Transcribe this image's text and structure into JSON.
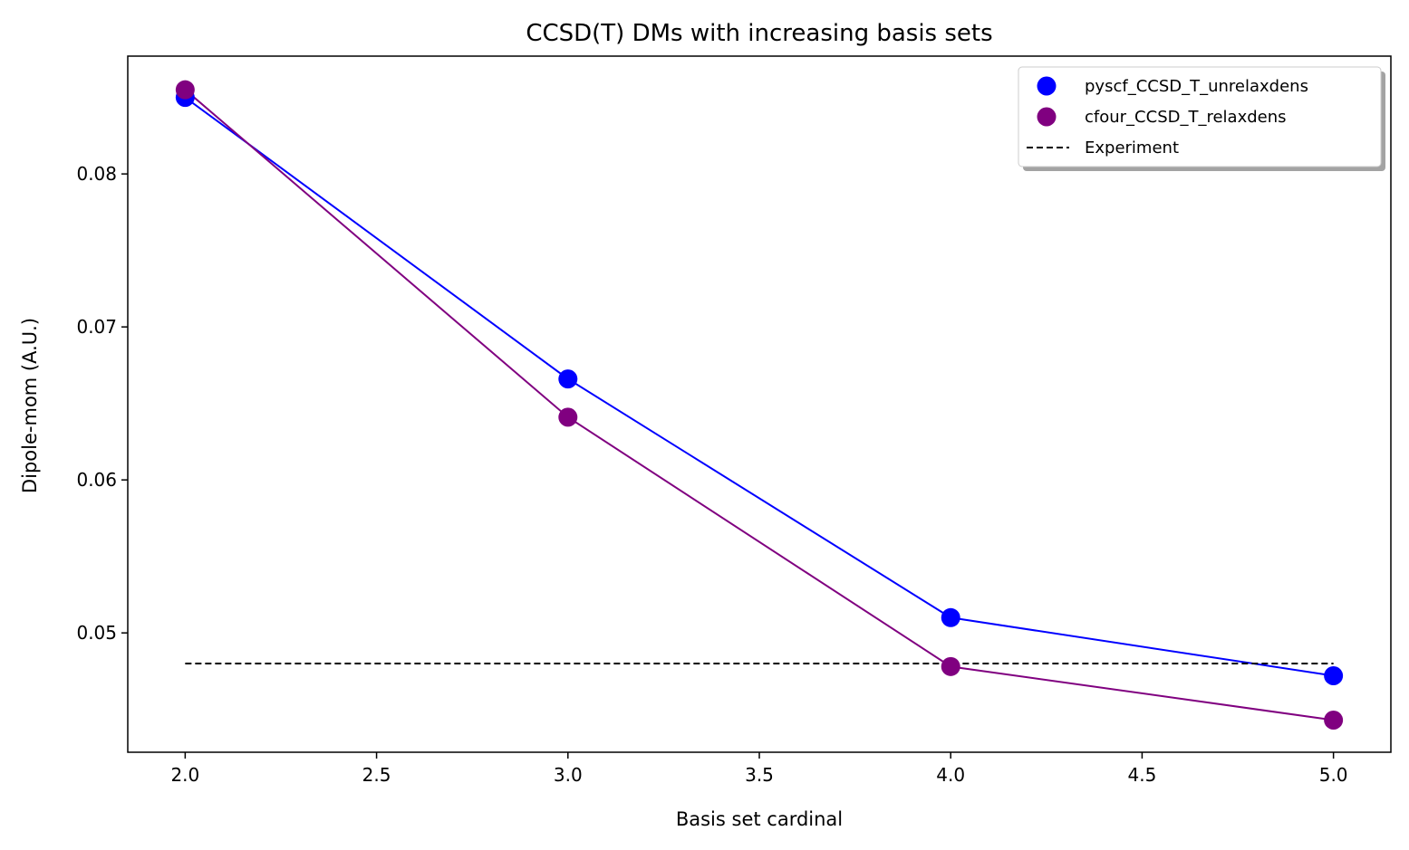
{
  "chart_data": {
    "type": "line",
    "title": "CCSD(T) DMs with increasing basis sets",
    "xlabel": "Basis set cardinal",
    "ylabel": "Dipole-mom (A.U.)",
    "xlim": [
      1.85,
      5.15
    ],
    "ylim": [
      0.0422,
      0.0877
    ],
    "xticks": [
      2.0,
      2.5,
      3.0,
      3.5,
      4.0,
      4.5,
      5.0
    ],
    "xtick_labels": [
      "2.0",
      "2.5",
      "3.0",
      "3.5",
      "4.0",
      "4.5",
      "5.0"
    ],
    "yticks": [
      0.05,
      0.06,
      0.07,
      0.08
    ],
    "ytick_labels": [
      "0.05",
      "0.06",
      "0.07",
      "0.08"
    ],
    "grid": false,
    "legend_position": "top-right",
    "series": [
      {
        "name": "pyscf_CCSD_T_unrelaxdens",
        "color": "#0000ff",
        "marker": "circle",
        "x": [
          2,
          3,
          4,
          5
        ],
        "y": [
          0.085,
          0.0666,
          0.051,
          0.0472
        ]
      },
      {
        "name": "cfour_CCSD_T_relaxdens",
        "color": "#800080",
        "marker": "circle",
        "x": [
          2,
          3,
          4,
          5
        ],
        "y": [
          0.0855,
          0.0641,
          0.0478,
          0.0443
        ]
      },
      {
        "name": "Experiment",
        "color": "#000000",
        "style": "dashed",
        "x": [
          2,
          5
        ],
        "y": [
          0.048,
          0.048
        ]
      }
    ]
  }
}
